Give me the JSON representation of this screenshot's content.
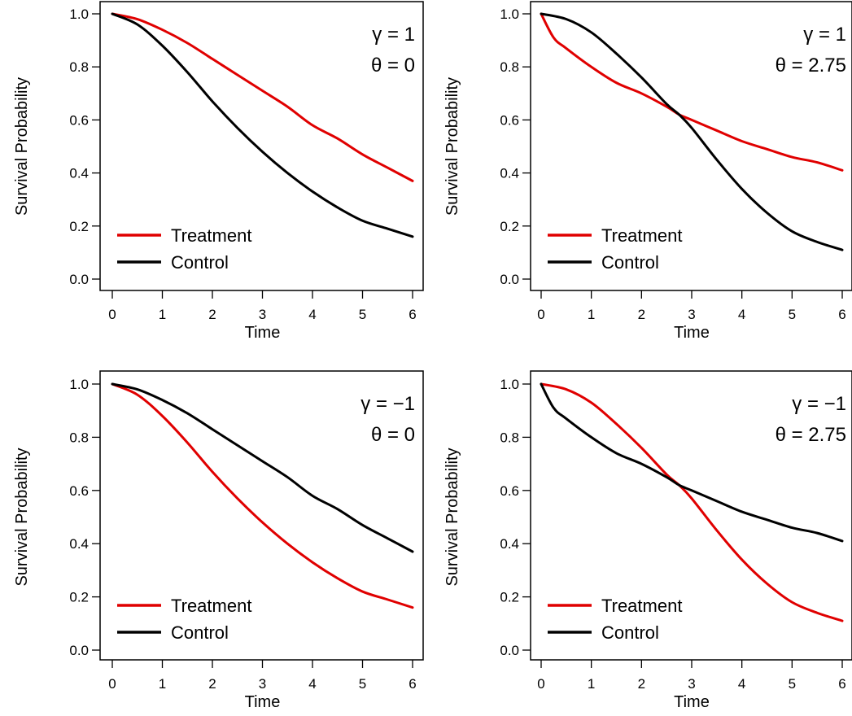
{
  "colors": {
    "Treatment": "#e00000",
    "Control": "#000000"
  },
  "chart_data": [
    {
      "type": "line",
      "xlabel": "Time",
      "ylabel": "Survival Probability",
      "xlim": [
        0,
        6
      ],
      "ylim": [
        0,
        1
      ],
      "xticks": [
        "0",
        "1",
        "2",
        "3",
        "4",
        "5",
        "6"
      ],
      "yticks": [
        "0.0",
        "0.2",
        "0.4",
        "0.6",
        "0.8",
        "1.0"
      ],
      "annotations": [
        "γ = 1",
        "θ = 0"
      ],
      "legend_position": "bottom-left",
      "grid": false,
      "series": [
        {
          "name": "Treatment",
          "x": [
            0,
            0.5,
            1,
            1.5,
            2,
            2.5,
            3,
            3.5,
            4,
            4.5,
            5,
            5.5,
            6
          ],
          "y": [
            1.0,
            0.98,
            0.94,
            0.89,
            0.83,
            0.77,
            0.71,
            0.65,
            0.58,
            0.53,
            0.47,
            0.42,
            0.37
          ]
        },
        {
          "name": "Control",
          "x": [
            0,
            0.5,
            1,
            1.5,
            2,
            2.5,
            3,
            3.5,
            4,
            4.5,
            5,
            5.5,
            6
          ],
          "y": [
            1.0,
            0.96,
            0.88,
            0.78,
            0.67,
            0.57,
            0.48,
            0.4,
            0.33,
            0.27,
            0.22,
            0.19,
            0.16
          ]
        }
      ]
    },
    {
      "type": "line",
      "xlabel": "Time",
      "ylabel": "Survival Probability",
      "xlim": [
        0,
        6
      ],
      "ylim": [
        0,
        1
      ],
      "xticks": [
        "0",
        "1",
        "2",
        "3",
        "4",
        "5",
        "6"
      ],
      "yticks": [
        "0.0",
        "0.2",
        "0.4",
        "0.6",
        "0.8",
        "1.0"
      ],
      "annotations": [
        "γ = 1",
        "θ = 2.75"
      ],
      "legend_position": "bottom-left",
      "grid": false,
      "series": [
        {
          "name": "Treatment",
          "x": [
            0,
            0.25,
            0.5,
            1,
            1.5,
            2,
            2.5,
            2.75,
            3,
            3.5,
            4,
            4.5,
            5,
            5.5,
            6
          ],
          "y": [
            1.0,
            0.91,
            0.87,
            0.8,
            0.74,
            0.7,
            0.65,
            0.62,
            0.6,
            0.56,
            0.52,
            0.49,
            0.46,
            0.44,
            0.41
          ]
        },
        {
          "name": "Control",
          "x": [
            0,
            0.5,
            1,
            1.5,
            2,
            2.5,
            2.75,
            3,
            3.5,
            4,
            4.5,
            5,
            5.5,
            6
          ],
          "y": [
            1.0,
            0.98,
            0.93,
            0.85,
            0.76,
            0.66,
            0.62,
            0.57,
            0.45,
            0.34,
            0.25,
            0.18,
            0.14,
            0.11
          ]
        }
      ]
    },
    {
      "type": "line",
      "xlabel": "Time",
      "ylabel": "Survival Probability",
      "xlim": [
        0,
        6
      ],
      "ylim": [
        0,
        1
      ],
      "xticks": [
        "0",
        "1",
        "2",
        "3",
        "4",
        "5",
        "6"
      ],
      "yticks": [
        "0.0",
        "0.2",
        "0.4",
        "0.6",
        "0.8",
        "1.0"
      ],
      "annotations": [
        "γ = −1",
        "θ = 0"
      ],
      "legend_position": "bottom-left",
      "grid": false,
      "series": [
        {
          "name": "Treatment",
          "x": [
            0,
            0.5,
            1,
            1.5,
            2,
            2.5,
            3,
            3.5,
            4,
            4.5,
            5,
            5.5,
            6
          ],
          "y": [
            1.0,
            0.96,
            0.88,
            0.78,
            0.67,
            0.57,
            0.48,
            0.4,
            0.33,
            0.27,
            0.22,
            0.19,
            0.16
          ]
        },
        {
          "name": "Control",
          "x": [
            0,
            0.5,
            1,
            1.5,
            2,
            2.5,
            3,
            3.5,
            4,
            4.5,
            5,
            5.5,
            6
          ],
          "y": [
            1.0,
            0.98,
            0.94,
            0.89,
            0.83,
            0.77,
            0.71,
            0.65,
            0.58,
            0.53,
            0.47,
            0.42,
            0.37
          ]
        }
      ]
    },
    {
      "type": "line",
      "xlabel": "Time",
      "ylabel": "Survival Probability",
      "xlim": [
        0,
        6
      ],
      "ylim": [
        0,
        1
      ],
      "xticks": [
        "0",
        "1",
        "2",
        "3",
        "4",
        "5",
        "6"
      ],
      "yticks": [
        "0.0",
        "0.2",
        "0.4",
        "0.6",
        "0.8",
        "1.0"
      ],
      "annotations": [
        "γ = −1",
        "θ = 2.75"
      ],
      "legend_position": "bottom-left",
      "grid": false,
      "series": [
        {
          "name": "Treatment",
          "x": [
            0,
            0.5,
            1,
            1.5,
            2,
            2.5,
            2.75,
            3,
            3.5,
            4,
            4.5,
            5,
            5.5,
            6
          ],
          "y": [
            1.0,
            0.98,
            0.93,
            0.85,
            0.76,
            0.66,
            0.62,
            0.57,
            0.45,
            0.34,
            0.25,
            0.18,
            0.14,
            0.11
          ]
        },
        {
          "name": "Control",
          "x": [
            0,
            0.25,
            0.5,
            1,
            1.5,
            2,
            2.5,
            2.75,
            3,
            3.5,
            4,
            4.5,
            5,
            5.5,
            6
          ],
          "y": [
            1.0,
            0.91,
            0.87,
            0.8,
            0.74,
            0.7,
            0.65,
            0.62,
            0.6,
            0.56,
            0.52,
            0.49,
            0.46,
            0.44,
            0.41
          ]
        }
      ]
    }
  ]
}
